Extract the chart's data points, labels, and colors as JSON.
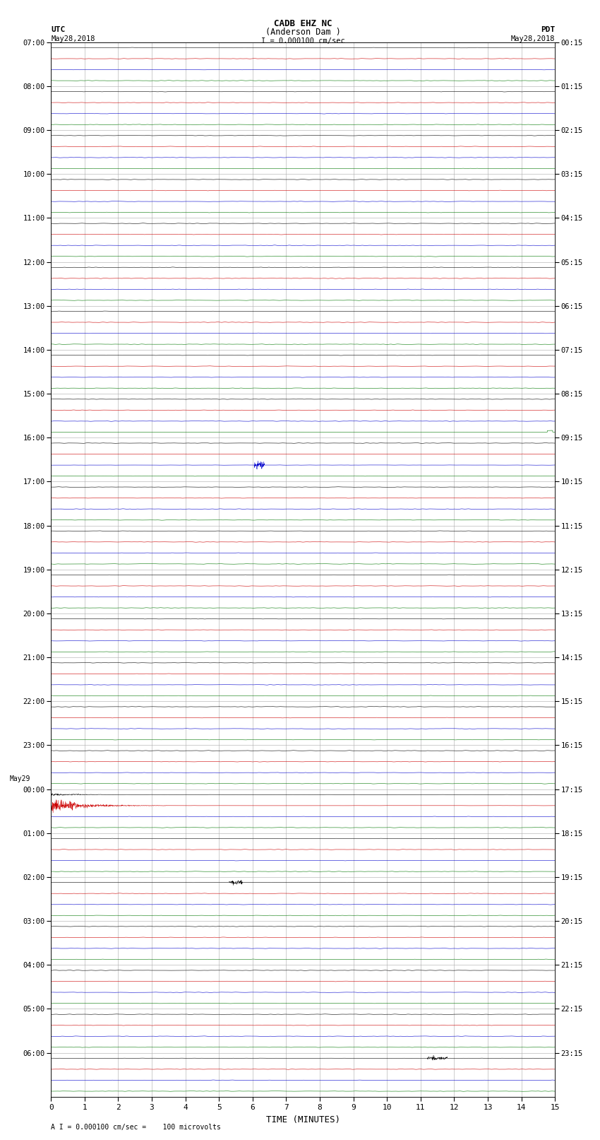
{
  "title_line1": "CADB EHZ NC",
  "title_line2": "(Anderson Dam )",
  "scale_label": "I = 0.000100 cm/sec",
  "utc_label": "UTC",
  "utc_date": "May28,2018",
  "pdt_label": "PDT",
  "pdt_date": "May28,2018",
  "xlabel": "TIME (MINUTES)",
  "footer": "A I = 0.000100 cm/sec =    100 microvolts",
  "xmin": 0,
  "xmax": 15,
  "left_times": [
    "07:00",
    "08:00",
    "09:00",
    "10:00",
    "11:00",
    "12:00",
    "13:00",
    "14:00",
    "15:00",
    "16:00",
    "17:00",
    "18:00",
    "19:00",
    "20:00",
    "21:00",
    "22:00",
    "23:00",
    "00:00",
    "01:00",
    "02:00",
    "03:00",
    "04:00",
    "05:00",
    "06:00"
  ],
  "right_times": [
    "00:15",
    "01:15",
    "02:15",
    "03:15",
    "04:15",
    "05:15",
    "06:15",
    "07:15",
    "08:15",
    "09:15",
    "10:15",
    "11:15",
    "12:15",
    "13:15",
    "14:15",
    "15:15",
    "16:15",
    "17:15",
    "18:15",
    "19:15",
    "20:15",
    "21:15",
    "22:15",
    "23:15"
  ],
  "n_hours": 24,
  "traces_per_hour": 4,
  "trace_colors": [
    "#000000",
    "#cc0000",
    "#0000cc",
    "#007700"
  ],
  "bg_color": "#ffffff",
  "grid_color": "#aaaaaa",
  "noise_amplitude": 0.06,
  "seismic_event_hour": 17,
  "seismic_event_color_idx": 1,
  "blue_spike_hour": 9,
  "blue_spike_minute": 6.2,
  "green_tick_hour": 8,
  "green_tick_minute": 14.85,
  "black_spike_hour": 19,
  "black_spike_minute": 5.5,
  "black_spike2_hour": 23,
  "black_spike2_minute": 11.5
}
